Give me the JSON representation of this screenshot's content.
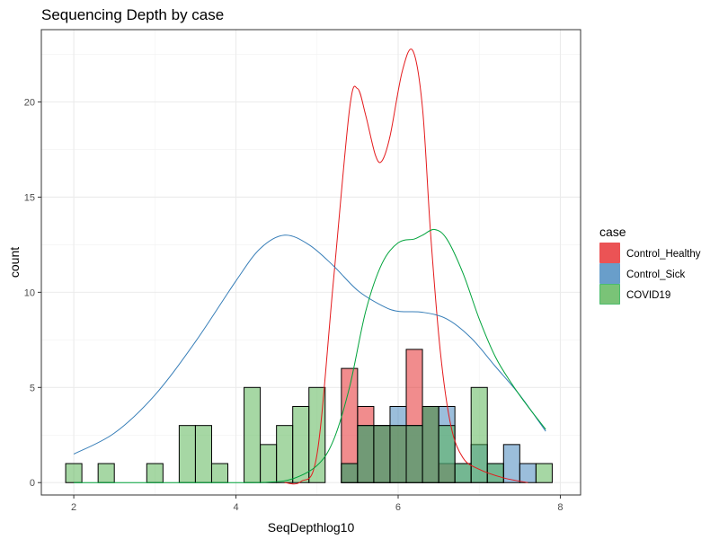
{
  "chart_data": {
    "type": "histogram",
    "title": "Sequencing Depth by case",
    "xlabel": "SeqDepthlog10",
    "ylabel": "count",
    "xlim": [
      1.6,
      8.25
    ],
    "ylim": [
      -0.65,
      23.8
    ],
    "x_ticks": [
      2,
      4,
      6,
      8
    ],
    "y_ticks": [
      0,
      5,
      10,
      15,
      20
    ],
    "grid": true,
    "legend": {
      "title": "case",
      "placement": "right"
    },
    "bin_width": 0.2,
    "series": [
      {
        "name": "Control_Healthy",
        "fill": "#E41A1C",
        "line": "#E41A1C",
        "bins": [
          {
            "x": 5.4,
            "count": 6
          },
          {
            "x": 5.6,
            "count": 4
          },
          {
            "x": 5.8,
            "count": 3
          },
          {
            "x": 6.0,
            "count": 3
          },
          {
            "x": 6.2,
            "count": 7
          },
          {
            "x": 6.4,
            "count": 4
          },
          {
            "x": 6.6,
            "count": 1
          }
        ],
        "density": [
          [
            4.6,
            0
          ],
          [
            4.8,
            0.05
          ],
          [
            5.0,
            1.5
          ],
          [
            5.2,
            10.5
          ],
          [
            5.4,
            19.6
          ],
          [
            5.5,
            20.7
          ],
          [
            5.6,
            19.3
          ],
          [
            5.72,
            17.2
          ],
          [
            5.8,
            16.9
          ],
          [
            5.9,
            18.2
          ],
          [
            6.05,
            21.6
          ],
          [
            6.18,
            22.7
          ],
          [
            6.3,
            19.7
          ],
          [
            6.4,
            13.1
          ],
          [
            6.52,
            6.9
          ],
          [
            6.65,
            3.0
          ],
          [
            6.8,
            1.3
          ],
          [
            7.0,
            0.7
          ],
          [
            7.3,
            0.25
          ],
          [
            7.6,
            0
          ]
        ]
      },
      {
        "name": "Control_Sick",
        "fill": "#377EB8",
        "line": "#377EB8",
        "bins": [
          {
            "x": 5.4,
            "count": 1
          },
          {
            "x": 5.6,
            "count": 3
          },
          {
            "x": 5.8,
            "count": 3
          },
          {
            "x": 6.0,
            "count": 4
          },
          {
            "x": 6.2,
            "count": 3
          },
          {
            "x": 6.4,
            "count": 4
          },
          {
            "x": 6.6,
            "count": 4
          },
          {
            "x": 6.8,
            "count": 1
          },
          {
            "x": 7.0,
            "count": 2
          },
          {
            "x": 7.2,
            "count": 1
          },
          {
            "x": 7.4,
            "count": 2
          },
          {
            "x": 7.6,
            "count": 1
          }
        ],
        "density": [
          [
            2.0,
            1.5
          ],
          [
            2.5,
            2.6
          ],
          [
            3.0,
            4.6
          ],
          [
            3.5,
            7.4
          ],
          [
            4.0,
            10.6
          ],
          [
            4.3,
            12.3
          ],
          [
            4.6,
            13.0
          ],
          [
            4.9,
            12.5
          ],
          [
            5.2,
            11.4
          ],
          [
            5.5,
            10.1
          ],
          [
            5.8,
            9.3
          ],
          [
            6.0,
            9.0
          ],
          [
            6.3,
            8.95
          ],
          [
            6.6,
            8.6
          ],
          [
            6.9,
            7.6
          ],
          [
            7.2,
            6.1
          ],
          [
            7.5,
            4.6
          ],
          [
            7.82,
            2.7
          ]
        ]
      },
      {
        "name": "COVID19",
        "fill": "#4DAF4A",
        "line": "#00A33B",
        "bins": [
          {
            "x": 2.0,
            "count": 1
          },
          {
            "x": 2.4,
            "count": 1
          },
          {
            "x": 3.0,
            "count": 1
          },
          {
            "x": 3.4,
            "count": 3
          },
          {
            "x": 3.6,
            "count": 3
          },
          {
            "x": 3.8,
            "count": 1
          },
          {
            "x": 4.2,
            "count": 5
          },
          {
            "x": 4.4,
            "count": 2
          },
          {
            "x": 4.6,
            "count": 3
          },
          {
            "x": 4.8,
            "count": 4
          },
          {
            "x": 5.0,
            "count": 5
          },
          {
            "x": 5.4,
            "count": 1
          },
          {
            "x": 5.6,
            "count": 3
          },
          {
            "x": 5.8,
            "count": 3
          },
          {
            "x": 6.0,
            "count": 3
          },
          {
            "x": 6.2,
            "count": 3
          },
          {
            "x": 6.4,
            "count": 4
          },
          {
            "x": 6.6,
            "count": 3
          },
          {
            "x": 6.8,
            "count": 1
          },
          {
            "x": 7.0,
            "count": 5
          },
          {
            "x": 7.2,
            "count": 1
          },
          {
            "x": 7.8,
            "count": 1
          }
        ],
        "density": [
          [
            2.0,
            0
          ],
          [
            3.0,
            0
          ],
          [
            4.0,
            0
          ],
          [
            4.4,
            0.02
          ],
          [
            4.7,
            0.2
          ],
          [
            5.0,
            0.9
          ],
          [
            5.2,
            2.2
          ],
          [
            5.4,
            5.0
          ],
          [
            5.6,
            9.0
          ],
          [
            5.8,
            11.5
          ],
          [
            6.0,
            12.6
          ],
          [
            6.2,
            12.8
          ],
          [
            6.3,
            13.0
          ],
          [
            6.45,
            13.3
          ],
          [
            6.6,
            12.8
          ],
          [
            6.8,
            11.0
          ],
          [
            7.0,
            8.6
          ],
          [
            7.2,
            6.6
          ],
          [
            7.4,
            5.2
          ],
          [
            7.6,
            4.0
          ],
          [
            7.82,
            2.8
          ]
        ]
      }
    ]
  }
}
